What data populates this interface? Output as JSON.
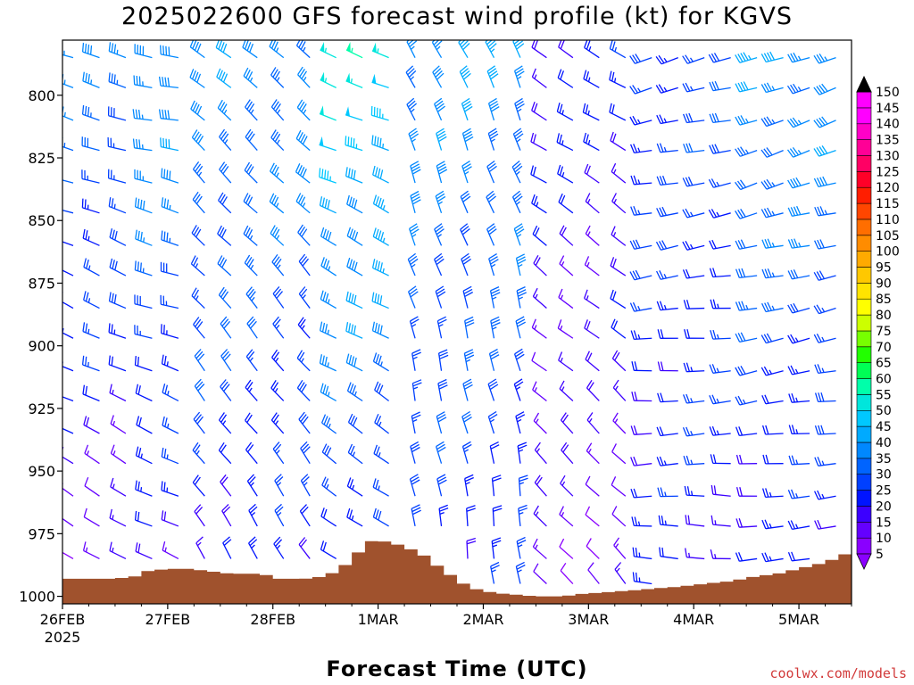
{
  "chart_data": {
    "type": "wind-barb-profile",
    "title": "2025022600 GFS forecast wind profile (kt) for KGVS",
    "xlabel": "Forecast Time (UTC)",
    "credit": "coolwx.com/models",
    "x_ticks": [
      {
        "day": 0,
        "label": "26FEB",
        "sublabel": "2025"
      },
      {
        "day": 1,
        "label": "27FEB"
      },
      {
        "day": 2,
        "label": "28FEB"
      },
      {
        "day": 3,
        "label": "1MAR"
      },
      {
        "day": 4,
        "label": "2MAR"
      },
      {
        "day": 5,
        "label": "3MAR"
      },
      {
        "day": 6,
        "label": "4MAR"
      },
      {
        "day": 7,
        "label": "5MAR"
      }
    ],
    "xlim_days": [
      0,
      7.5
    ],
    "y_ticks": [
      "800",
      "825",
      "850",
      "875",
      "900",
      "925",
      "950",
      "975",
      "1000"
    ],
    "ylim_hpa": [
      778,
      1003
    ],
    "colorbar": {
      "ticks": [
        "5",
        "10",
        "15",
        "20",
        "25",
        "30",
        "35",
        "40",
        "45",
        "50",
        "55",
        "60",
        "65",
        "70",
        "75",
        "80",
        "85",
        "90",
        "95",
        "100",
        "105",
        "110",
        "115",
        "120",
        "125",
        "130",
        "135",
        "140",
        "145",
        "150"
      ],
      "colors": [
        "#8a00ff",
        "#6400ff",
        "#3c00ff",
        "#0014ff",
        "#0040ff",
        "#0064ff",
        "#0088ff",
        "#00aaff",
        "#00c8ff",
        "#00e6dc",
        "#00ffaa",
        "#00ff55",
        "#22ff00",
        "#77ff00",
        "#ccff00",
        "#ffff00",
        "#ffe400",
        "#ffc800",
        "#ffaa00",
        "#ff8c00",
        "#ff6e00",
        "#ff4600",
        "#ff1e00",
        "#ff0028",
        "#ff0064",
        "#ff0096",
        "#ff00c8",
        "#ff00ff",
        "#ff00ff",
        "#000000"
      ]
    },
    "terrain_color": "#a0522d",
    "surface_pressure_hpa": [
      {
        "day": 0.0,
        "p": 993
      },
      {
        "day": 0.5,
        "p": 993
      },
      {
        "day": 0.7,
        "p": 992
      },
      {
        "day": 0.8,
        "p": 990
      },
      {
        "day": 1.0,
        "p": 989
      },
      {
        "day": 1.2,
        "p": 989
      },
      {
        "day": 1.4,
        "p": 990
      },
      {
        "day": 1.6,
        "p": 991
      },
      {
        "day": 1.9,
        "p": 991
      },
      {
        "day": 2.05,
        "p": 993
      },
      {
        "day": 2.3,
        "p": 993
      },
      {
        "day": 2.5,
        "p": 992
      },
      {
        "day": 2.65,
        "p": 989
      },
      {
        "day": 2.8,
        "p": 983
      },
      {
        "day": 2.92,
        "p": 978
      },
      {
        "day": 3.05,
        "p": 978
      },
      {
        "day": 3.25,
        "p": 980
      },
      {
        "day": 3.45,
        "p": 984
      },
      {
        "day": 3.6,
        "p": 989
      },
      {
        "day": 3.85,
        "p": 996
      },
      {
        "day": 4.0,
        "p": 998
      },
      {
        "day": 4.2,
        "p": 999
      },
      {
        "day": 4.5,
        "p": 1000
      },
      {
        "day": 4.75,
        "p": 1000
      },
      {
        "day": 4.95,
        "p": 999
      },
      {
        "day": 5.3,
        "p": 998
      },
      {
        "day": 5.6,
        "p": 997
      },
      {
        "day": 5.9,
        "p": 996
      },
      {
        "day": 6.1,
        "p": 995
      },
      {
        "day": 6.35,
        "p": 994
      },
      {
        "day": 6.6,
        "p": 992
      },
      {
        "day": 6.8,
        "p": 991
      },
      {
        "day": 7.0,
        "p": 989
      },
      {
        "day": 7.2,
        "p": 987
      },
      {
        "day": 7.35,
        "p": 985
      },
      {
        "day": 7.5,
        "p": 982
      }
    ],
    "wind_regimes": [
      {
        "from_day": 0.0,
        "to_day": 0.6,
        "dir_deg": 285,
        "speed_upper_kt": 35,
        "speed_lower_kt": 12
      },
      {
        "from_day": 0.6,
        "to_day": 1.1,
        "dir_deg": 280,
        "speed_upper_kt": 42,
        "speed_lower_kt": 15
      },
      {
        "from_day": 1.1,
        "to_day": 2.4,
        "dir_deg": 310,
        "speed_upper_kt": 38,
        "speed_lower_kt": 20
      },
      {
        "from_day": 2.4,
        "to_day": 3.2,
        "dir_deg": 290,
        "speed_upper_kt": 52,
        "speed_lower_kt": 22
      },
      {
        "from_day": 3.2,
        "to_day": 4.4,
        "dir_deg": 335,
        "speed_upper_kt": 40,
        "speed_lower_kt": 22
      },
      {
        "from_day": 4.4,
        "to_day": 5.5,
        "dir_deg": 300,
        "speed_upper_kt": 22,
        "speed_lower_kt": 12
      },
      {
        "from_day": 5.5,
        "to_day": 6.5,
        "dir_deg": 255,
        "speed_upper_kt": 28,
        "speed_lower_kt": 20
      },
      {
        "from_day": 6.5,
        "to_day": 7.5,
        "dir_deg": 250,
        "speed_upper_kt": 40,
        "speed_lower_kt": 18
      }
    ],
    "barb_levels_hpa": [
      785,
      797,
      810,
      822,
      835,
      847,
      860,
      872,
      885,
      897,
      910,
      922,
      935,
      947,
      960,
      972,
      985,
      995
    ],
    "barb_time_step_hours": 6
  }
}
